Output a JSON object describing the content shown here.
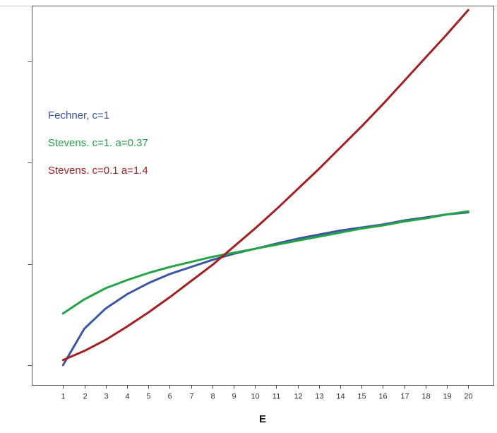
{
  "chart_data": {
    "type": "line",
    "title": "",
    "xlabel": "E",
    "ylabel": "",
    "x": [
      1,
      2,
      3,
      4,
      5,
      6,
      7,
      8,
      9,
      10,
      11,
      12,
      13,
      14,
      15,
      16,
      17,
      18,
      19,
      20
    ],
    "x_tick_labels": [
      "1",
      "2",
      "3",
      "4",
      "5",
      "6",
      "7",
      "8",
      "9",
      "10",
      "11",
      "12",
      "13",
      "14",
      "15",
      "16",
      "17",
      "18",
      "19",
      "20"
    ],
    "xlim": [
      -0.45,
      21.2
    ],
    "ylim": [
      -0.2,
      3.55
    ],
    "y_ticks": [
      0,
      1,
      2,
      3
    ],
    "grid": false,
    "legend_position": "top-left",
    "series": [
      {
        "name": "Fechner, c=1",
        "color": "#3b56a3",
        "values": [
          0.0,
          0.36,
          0.56,
          0.7,
          0.81,
          0.9,
          0.97,
          1.04,
          1.1,
          1.15,
          1.2,
          1.25,
          1.29,
          1.33,
          1.36,
          1.39,
          1.43,
          1.46,
          1.49,
          1.51
        ]
      },
      {
        "name": "Stevens. c=1. a=0.37",
        "color": "#24a445",
        "values": [
          0.51,
          0.65,
          0.76,
          0.84,
          0.91,
          0.97,
          1.02,
          1.07,
          1.11,
          1.15,
          1.19,
          1.23,
          1.27,
          1.31,
          1.35,
          1.38,
          1.42,
          1.45,
          1.49,
          1.52
        ]
      },
      {
        "name": "Stevens. c=0.1 a=1.4",
        "color": "#a41f22",
        "values": [
          0.05,
          0.14,
          0.25,
          0.38,
          0.52,
          0.67,
          0.83,
          0.99,
          1.17,
          1.35,
          1.54,
          1.74,
          1.94,
          2.15,
          2.36,
          2.58,
          2.81,
          3.04,
          3.27,
          3.51
        ]
      }
    ]
  }
}
